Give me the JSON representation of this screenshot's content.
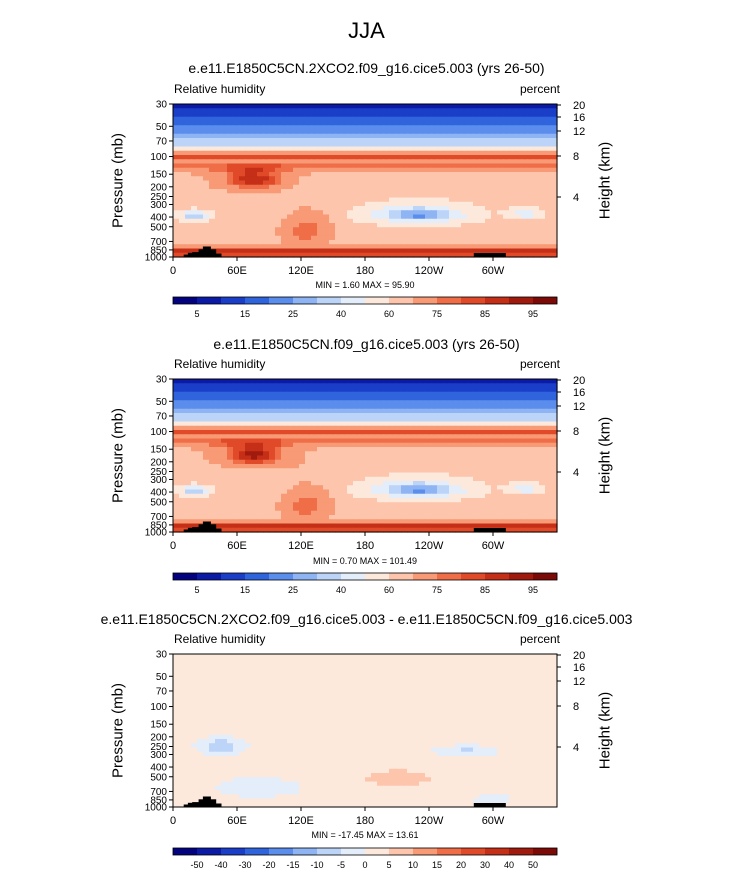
{
  "page_title": "JJA",
  "chart_data": [
    {
      "type": "heatmap",
      "title": "e.e11.E1850C5CN.2XCO2.f09_g16.cice5.003 (yrs 26-50)",
      "variable": "Relative humidity",
      "units": "percent",
      "stats": "MIN =   1.60  MAX =  95.90",
      "ylabel_left": "Pressure (mb)",
      "ylabel_right": "Height (km)",
      "xticks": [
        "0",
        "60E",
        "120E",
        "180",
        "120W",
        "60W"
      ],
      "xlim": [
        0,
        360
      ],
      "pressure_ticks": [
        "30",
        "50",
        "70",
        "100",
        "150",
        "200",
        "250",
        "300",
        "400",
        "500",
        "700",
        "850",
        "1000"
      ],
      "height_ticks": [
        "20",
        "16",
        "12",
        "8",
        "4"
      ],
      "colorbar_labels": [
        "5",
        "15",
        "25",
        "40",
        "60",
        "75",
        "85",
        "95"
      ],
      "colors": [
        "#03037f",
        "#0b1ba5",
        "#1a3ec8",
        "#2f64dd",
        "#5b8ded",
        "#8eb4f4",
        "#bcd4f8",
        "#e4eefb",
        "#fde8dc",
        "#fcc5ac",
        "#f79a75",
        "#ef6e48",
        "#e04a29",
        "#c52f17",
        "#a01b0e",
        "#7c0b08"
      ]
    },
    {
      "type": "heatmap",
      "title": "e.e11.E1850C5CN.f09_g16.cice5.003 (yrs 26-50)",
      "variable": "Relative humidity",
      "units": "percent",
      "stats": "MIN =   0.70  MAX = 101.49",
      "ylabel_left": "Pressure (mb)",
      "ylabel_right": "Height (km)",
      "xticks": [
        "0",
        "60E",
        "120E",
        "180",
        "120W",
        "60W"
      ],
      "xlim": [
        0,
        360
      ],
      "pressure_ticks": [
        "30",
        "50",
        "70",
        "100",
        "150",
        "200",
        "250",
        "300",
        "400",
        "500",
        "700",
        "850",
        "1000"
      ],
      "height_ticks": [
        "20",
        "16",
        "12",
        "8",
        "4"
      ],
      "colorbar_labels": [
        "5",
        "15",
        "25",
        "40",
        "60",
        "75",
        "85",
        "95"
      ],
      "colors": [
        "#03037f",
        "#0b1ba5",
        "#1a3ec8",
        "#2f64dd",
        "#5b8ded",
        "#8eb4f4",
        "#bcd4f8",
        "#e4eefb",
        "#fde8dc",
        "#fcc5ac",
        "#f79a75",
        "#ef6e48",
        "#e04a29",
        "#c52f17",
        "#a01b0e",
        "#7c0b08"
      ]
    },
    {
      "type": "heatmap",
      "title": "e.e11.E1850C5CN.2XCO2.f09_g16.cice5.003 - e.e11.E1850C5CN.f09_g16.cice5.003",
      "variable": "Relative humidity",
      "units": "percent",
      "stats": "MIN = -17.45  MAX =  13.61",
      "ylabel_left": "Pressure (mb)",
      "ylabel_right": "Height (km)",
      "xticks": [
        "0",
        "60E",
        "120E",
        "180",
        "120W",
        "60W"
      ],
      "xlim": [
        0,
        360
      ],
      "pressure_ticks": [
        "30",
        "50",
        "70",
        "100",
        "150",
        "200",
        "250",
        "300",
        "400",
        "500",
        "700",
        "850",
        "1000"
      ],
      "height_ticks": [
        "20",
        "16",
        "12",
        "8",
        "4"
      ],
      "colorbar_labels": [
        "-50",
        "-40",
        "-30",
        "-20",
        "-15",
        "-10",
        "-5",
        "0",
        "5",
        "10",
        "15",
        "20",
        "30",
        "40",
        "50"
      ],
      "colors": [
        "#03037f",
        "#0b1ba5",
        "#1a3ec8",
        "#2f64dd",
        "#5b8ded",
        "#8eb4f4",
        "#bcd4f8",
        "#e4eefb",
        "#fde8dc",
        "#fcc5ac",
        "#f79a75",
        "#ef6e48",
        "#e04a29",
        "#c52f17",
        "#a01b0e",
        "#7c0b08"
      ]
    }
  ]
}
